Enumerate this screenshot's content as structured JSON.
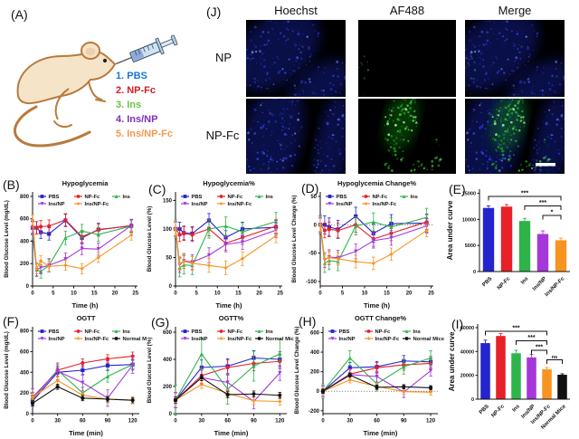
{
  "panels": {
    "A": {
      "label": "(A)",
      "items": [
        {
          "text": "1. PBS",
          "color": "#1b74d8"
        },
        {
          "text": "2. NP-Fc",
          "color": "#cb2128"
        },
        {
          "text": "3. Ins",
          "color": "#6cbf4d"
        },
        {
          "text": "4. Ins/NP",
          "color": "#7c2fb8"
        },
        {
          "text": "5. Ins/NP-Fc",
          "color": "#f2984d"
        }
      ]
    },
    "J": {
      "label": "(J)",
      "columns": [
        "Hoechst",
        "AF488",
        "Merge"
      ],
      "rows": [
        "NP",
        "NP-Fc"
      ],
      "scale_bar": true
    }
  },
  "chart_data": [
    {
      "panel": "B",
      "panel_label": "(B)",
      "type": "line",
      "title": "Hypoglycemia",
      "xlabel": "Time (h)",
      "ylabel": "Blood Glucose Level (mg/dL)",
      "x": [
        0,
        1,
        2,
        4,
        8,
        12,
        16,
        24
      ],
      "xlim": [
        0,
        25.5
      ],
      "xticks": [
        0,
        5,
        10,
        15,
        20,
        25
      ],
      "ylim": [
        0,
        840
      ],
      "yticks": [
        0,
        200,
        400,
        600,
        800
      ],
      "zero_line": false,
      "series": [
        {
          "name": "PBS",
          "color": "#2424cf",
          "marker": "square",
          "err": 55,
          "values": [
            520,
            520,
            480,
            465,
            585,
            430,
            505,
            535
          ]
        },
        {
          "name": "NP-Fc",
          "color": "#e7202a",
          "marker": "circle",
          "err": 55,
          "values": [
            525,
            520,
            530,
            535,
            590,
            440,
            500,
            540
          ]
        },
        {
          "name": "Ins",
          "color": "#2eb44b",
          "marker": "triangle",
          "err": 60,
          "values": [
            470,
            145,
            130,
            185,
            430,
            490,
            460,
            535
          ]
        },
        {
          "name": "Ins/NP",
          "color": "#a637d8",
          "marker": "triangle-down",
          "err": 55,
          "values": [
            520,
            145,
            165,
            185,
            240,
            335,
            330,
            540
          ]
        },
        {
          "name": "Ins/NP-Fc",
          "color": "#f79420",
          "marker": "diamond",
          "err": 45,
          "values": [
            590,
            155,
            225,
            175,
            185,
            155,
            255,
            455
          ]
        }
      ]
    },
    {
      "panel": "C",
      "panel_label": "(C)",
      "type": "line",
      "title": "Hypoglycemia%",
      "xlabel": "Time (h)",
      "ylabel": "Blood Glucose Level (%)",
      "x": [
        0,
        1,
        2,
        4,
        8,
        12,
        16,
        24
      ],
      "xlim": [
        0,
        25.5
      ],
      "xticks": [
        0,
        5,
        10,
        15,
        20,
        25
      ],
      "ylim": [
        0,
        165
      ],
      "yticks": [
        0,
        50,
        100,
        150
      ],
      "zero_line": false,
      "series": [
        {
          "name": "PBS",
          "color": "#2424cf",
          "marker": "square",
          "err": 12,
          "values": [
            100,
            100,
            93,
            92,
            115,
            85,
            100,
            103
          ]
        },
        {
          "name": "NP-Fc",
          "color": "#e7202a",
          "marker": "circle",
          "err": 12,
          "values": [
            100,
            90,
            92,
            90,
            100,
            75,
            85,
            105
          ]
        },
        {
          "name": "Ins",
          "color": "#2eb44b",
          "marker": "triangle",
          "err": 16,
          "values": [
            100,
            32,
            37,
            36,
            100,
            105,
            95,
            113
          ]
        },
        {
          "name": "Ins/NP",
          "color": "#a637d8",
          "marker": "triangle-down",
          "err": 13,
          "values": [
            100,
            37,
            44,
            42,
            54,
            73,
            77,
            98
          ]
        },
        {
          "name": "Ins/NP-Fc",
          "color": "#f79420",
          "marker": "diamond",
          "err": 12,
          "values": [
            100,
            40,
            43,
            40,
            36,
            32,
            48,
            88
          ]
        }
      ]
    },
    {
      "panel": "D",
      "panel_label": "(D)",
      "type": "line",
      "title": "Hypoglycemia Change%",
      "xlabel": "Time (h)",
      "ylabel": "Blood Glucose Level Change (%)",
      "x": [
        0,
        1,
        2,
        4,
        8,
        12,
        16,
        24
      ],
      "xlim": [
        0,
        25.5
      ],
      "xticks": [
        0,
        5,
        10,
        15,
        20,
        25
      ],
      "ylim": [
        -108,
        58
      ],
      "yticks": [
        -100,
        -50,
        0,
        50
      ],
      "zero_line": true,
      "series": [
        {
          "name": "PBS",
          "color": "#2424cf",
          "marker": "square",
          "err": 16,
          "values": [
            0,
            0,
            -4,
            -8,
            15,
            -15,
            2,
            3
          ]
        },
        {
          "name": "NP-Fc",
          "color": "#e7202a",
          "marker": "circle",
          "err": 13,
          "values": [
            0,
            -10,
            -8,
            -10,
            0,
            -25,
            -15,
            5
          ]
        },
        {
          "name": "Ins",
          "color": "#2eb44b",
          "marker": "triangle",
          "err": 16,
          "values": [
            0,
            -68,
            -63,
            -65,
            -2,
            5,
            -4,
            13
          ]
        },
        {
          "name": "Ins/NP",
          "color": "#a637d8",
          "marker": "triangle-down",
          "err": 13,
          "values": [
            0,
            -62,
            -57,
            -58,
            -47,
            -28,
            -23,
            -2
          ]
        },
        {
          "name": "Ins/NP-Fc",
          "color": "#f79420",
          "marker": "diamond",
          "err": 11,
          "values": [
            0,
            -60,
            -58,
            -60,
            -65,
            -68,
            -52,
            -10
          ]
        }
      ]
    },
    {
      "panel": "E",
      "panel_label": "(E)",
      "type": "bar",
      "ylabel": "Area under curve",
      "ylim": [
        0,
        15800
      ],
      "yticks": [
        0,
        5000,
        10000,
        15000
      ],
      "categories": [
        "PBS",
        "NP-Fc",
        "Ins",
        "Ins/NP",
        "Ins/NP-Fc"
      ],
      "colors": [
        "#2424cf",
        "#e7202a",
        "#2eb44b",
        "#a637d8",
        "#f79420"
      ],
      "values": [
        12200,
        12450,
        9700,
        7200,
        6000
      ],
      "errors": [
        400,
        400,
        500,
        600,
        400
      ],
      "significance": [
        {
          "from": 0,
          "to": 4,
          "label": "***",
          "level": 0
        },
        {
          "from": 2,
          "to": 4,
          "label": "***",
          "level": 1
        },
        {
          "from": 3,
          "to": 4,
          "label": "*",
          "level": 2
        }
      ]
    },
    {
      "panel": "F",
      "panel_label": "(F)",
      "type": "line",
      "title": "OGTT",
      "xlabel": "Time (min)",
      "ylabel": "Blood Glucose Level (mg/dL)",
      "x": [
        0,
        30,
        60,
        90,
        120
      ],
      "xlim": [
        0,
        128
      ],
      "xticks": [
        0,
        30,
        60,
        90,
        120
      ],
      "ylim": [
        0,
        840
      ],
      "yticks": [
        0,
        200,
        400,
        600,
        800
      ],
      "zero_line": false,
      "series": [
        {
          "name": "PBS",
          "color": "#2424cf",
          "marker": "square",
          "err": 45,
          "values": [
            120,
            400,
            420,
            465,
            475
          ]
        },
        {
          "name": "NP-Fc",
          "color": "#e7202a",
          "marker": "circle",
          "err": 40,
          "values": [
            140,
            420,
            490,
            530,
            555
          ]
        },
        {
          "name": "Ins",
          "color": "#2eb44b",
          "marker": "triangle",
          "err": 55,
          "values": [
            150,
            420,
            200,
            360,
            475
          ]
        },
        {
          "name": "Ins/NP",
          "color": "#a637d8",
          "marker": "triangle-down",
          "err": 80,
          "values": [
            160,
            410,
            300,
            150,
            470
          ]
        },
        {
          "name": "Ins/NP-Fc",
          "color": "#f79420",
          "marker": "diamond",
          "err": 35,
          "values": [
            160,
            320,
            180,
            140,
            130
          ]
        },
        {
          "name": "Normal Mice",
          "color": "#111111",
          "marker": "circle",
          "err": 25,
          "values": [
            100,
            260,
            150,
            140,
            130
          ]
        }
      ]
    },
    {
      "panel": "G",
      "panel_label": "(G)",
      "type": "line",
      "title": "OGTT%",
      "xlabel": "Time (min)",
      "ylabel": "Blood Glucose Level (%)",
      "x": [
        0,
        30,
        60,
        90,
        120
      ],
      "xlim": [
        0,
        128
      ],
      "xticks": [
        0,
        30,
        60,
        90,
        120
      ],
      "ylim": [
        0,
        640
      ],
      "yticks": [
        0,
        200,
        400,
        600
      ],
      "zero_line": false,
      "series": [
        {
          "name": "PBS",
          "color": "#2424cf",
          "marker": "square",
          "err": 55,
          "values": [
            100,
            340,
            350,
            410,
            400
          ]
        },
        {
          "name": "NP-Fc",
          "color": "#e7202a",
          "marker": "circle",
          "err": 55,
          "values": [
            100,
            280,
            340,
            370,
            385
          ]
        },
        {
          "name": "Ins",
          "color": "#2eb44b",
          "marker": "triangle",
          "err": 110,
          "values": [
            100,
            440,
            180,
            350,
            440
          ]
        },
        {
          "name": "Ins/NP",
          "color": "#a637d8",
          "marker": "triangle-down",
          "err": 55,
          "values": [
            100,
            265,
            230,
            90,
            300
          ]
        },
        {
          "name": "Ins/NP-Fc",
          "color": "#f79420",
          "marker": "diamond",
          "err": 28,
          "values": [
            100,
            215,
            150,
            95,
            90
          ]
        },
        {
          "name": "Normal Mice",
          "color": "#111111",
          "marker": "circle",
          "err": 22,
          "values": [
            100,
            265,
            140,
            145,
            135
          ]
        }
      ]
    },
    {
      "panel": "H",
      "panel_label": "(H)",
      "type": "line",
      "title": "OGTT Change%",
      "xlabel": "Time (min)",
      "ylabel": "Blood Glucose Level Change (%)",
      "x": [
        0,
        30,
        60,
        90,
        120
      ],
      "xlim": [
        0,
        128
      ],
      "xticks": [
        0,
        30,
        60,
        90,
        120
      ],
      "ylim": [
        -230,
        660
      ],
      "yticks": [
        -200,
        0,
        200,
        400,
        600
      ],
      "zero_line": true,
      "series": [
        {
          "name": "PBS",
          "color": "#2424cf",
          "marker": "square",
          "err": 55,
          "values": [
            0,
            240,
            250,
            310,
            300
          ]
        },
        {
          "name": "NP-Fc",
          "color": "#e7202a",
          "marker": "circle",
          "err": 55,
          "values": [
            0,
            175,
            240,
            270,
            285
          ]
        },
        {
          "name": "Ins",
          "color": "#2eb44b",
          "marker": "triangle",
          "err": 75,
          "values": [
            0,
            340,
            75,
            250,
            340
          ]
        },
        {
          "name": "Ins/NP",
          "color": "#a637d8",
          "marker": "triangle-down",
          "err": 55,
          "values": [
            0,
            170,
            150,
            -10,
            210
          ]
        },
        {
          "name": "Ins/NP-Fc",
          "color": "#f79420",
          "marker": "diamond",
          "err": 30,
          "values": [
            0,
            115,
            50,
            -5,
            -10
          ]
        },
        {
          "name": "Normal Mice",
          "color": "#111111",
          "marker": "circle",
          "err": 22,
          "values": [
            0,
            165,
            40,
            45,
            35
          ]
        }
      ]
    },
    {
      "panel": "I",
      "panel_label": "(I)",
      "type": "bar",
      "ylabel": "Area under curve",
      "ylim": [
        0,
        63000
      ],
      "yticks": [
        0,
        20000,
        40000,
        60000
      ],
      "categories": [
        "PBS",
        "NP-Fc",
        "Ins",
        "Ins/NP",
        "Ins/NP-Fc",
        "Normal Mice"
      ],
      "colors": [
        "#2424cf",
        "#e7202a",
        "#2eb44b",
        "#a637d8",
        "#f79420",
        "#111111"
      ],
      "values": [
        47000,
        53000,
        38500,
        35000,
        25000,
        20500
      ],
      "errors": [
        2500,
        2000,
        2500,
        2500,
        1500,
        800
      ],
      "significance": [
        {
          "from": 0,
          "to": 4,
          "label": "***",
          "level": 0
        },
        {
          "from": 2,
          "to": 4,
          "label": "***",
          "level": 1
        },
        {
          "from": 3,
          "to": 4,
          "label": "***",
          "level": 2
        },
        {
          "from": 4,
          "to": 5,
          "label": "ns",
          "level": 3
        }
      ]
    }
  ]
}
